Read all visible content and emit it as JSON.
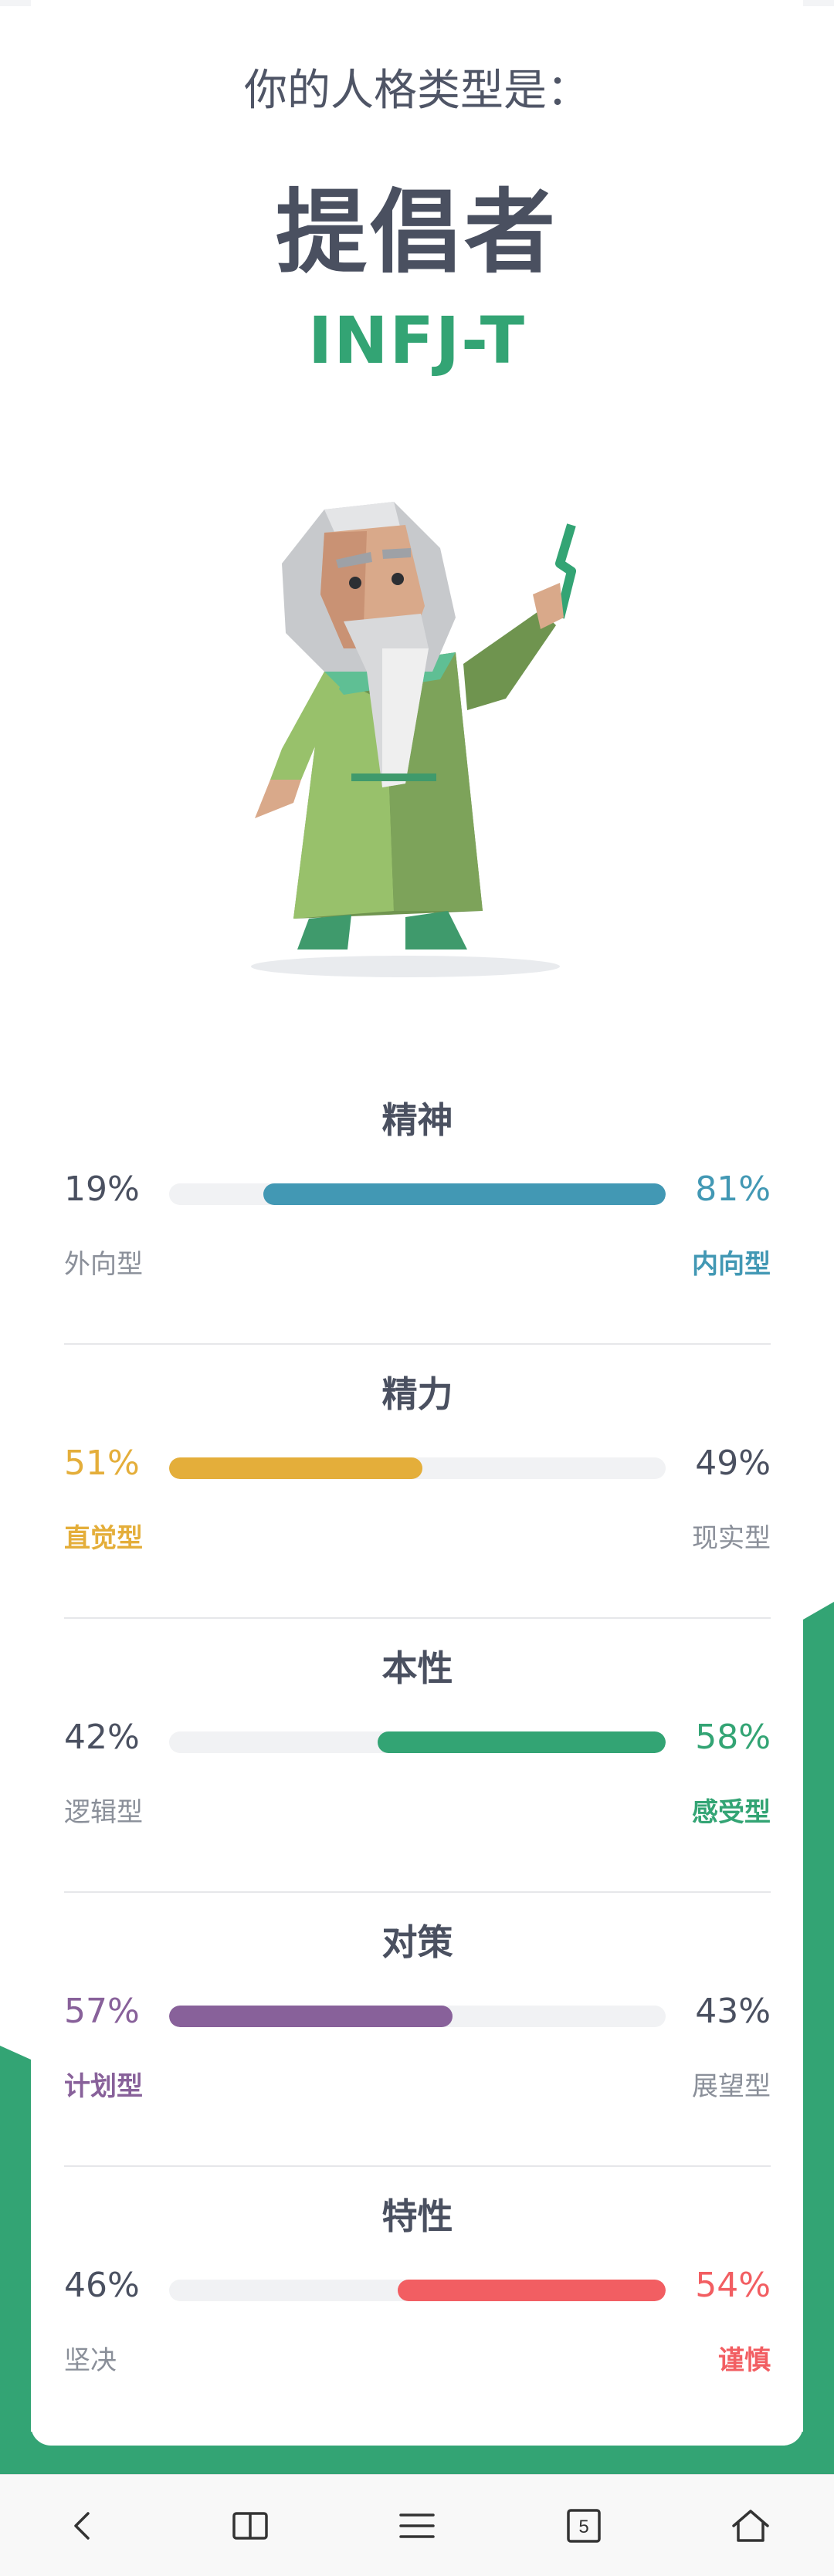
{
  "header": {
    "subtitle": "你的人格类型是：",
    "type_name": "提倡者",
    "type_code": "INFJ-T"
  },
  "avatar": {
    "icon": "sage-character-illustration"
  },
  "traits": [
    {
      "title": "精神",
      "left_pct": "19%",
      "right_pct": "81%",
      "left_label": "外向型",
      "right_label": "内向型",
      "dominant": "right",
      "fill_fraction": 0.81,
      "color": "#4298b4"
    },
    {
      "title": "精力",
      "left_pct": "51%",
      "right_pct": "49%",
      "left_label": "直觉型",
      "right_label": "现实型",
      "dominant": "left",
      "fill_fraction": 0.51,
      "color": "#e4ae3a"
    },
    {
      "title": "本性",
      "left_pct": "42%",
      "right_pct": "58%",
      "left_label": "逻辑型",
      "right_label": "感受型",
      "dominant": "right",
      "fill_fraction": 0.58,
      "color": "#33a474"
    },
    {
      "title": "对策",
      "left_pct": "57%",
      "right_pct": "43%",
      "left_label": "计划型",
      "right_label": "展望型",
      "dominant": "left",
      "fill_fraction": 0.57,
      "color": "#88619a"
    },
    {
      "title": "特性",
      "left_pct": "46%",
      "right_pct": "54%",
      "left_label": "坚决",
      "right_label": "谨慎",
      "dominant": "right",
      "fill_fraction": 0.54,
      "color": "#f25e62"
    }
  ],
  "colors": {
    "accent_green": "#33a474",
    "muted_text": "#8a8f99",
    "dark_text": "#4a5060"
  },
  "nav": {
    "items": [
      {
        "icon": "back-arrow-icon"
      },
      {
        "icon": "book-icon"
      },
      {
        "icon": "menu-icon"
      },
      {
        "icon": "tabs-icon",
        "count": "5"
      },
      {
        "icon": "home-icon"
      }
    ]
  }
}
